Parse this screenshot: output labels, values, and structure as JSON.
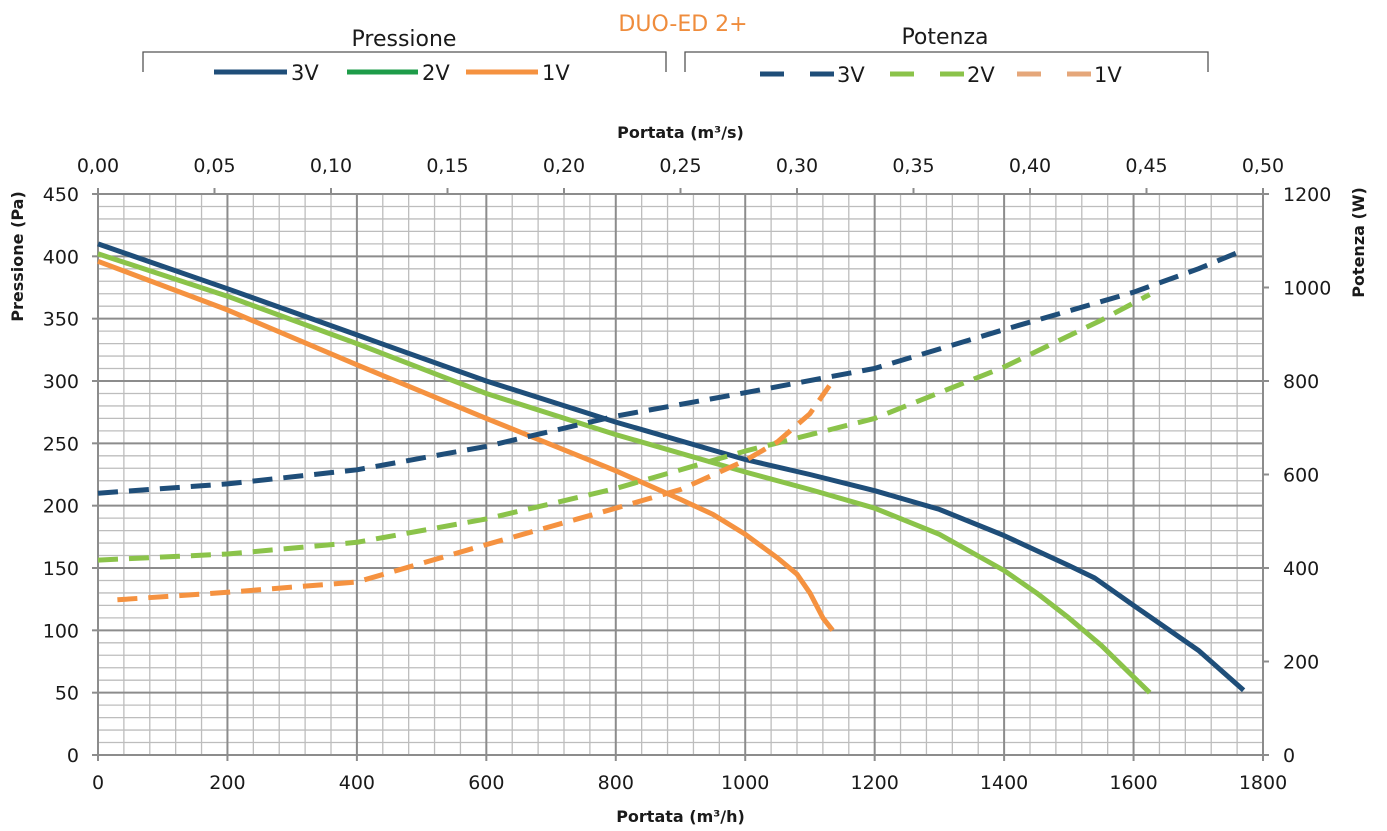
{
  "chart_data": {
    "type": "line",
    "title": "DUO-ED 2+",
    "x_bottom": {
      "label": "Portata (m³/h)",
      "range": [
        0,
        1800
      ],
      "ticks": [
        "0",
        "200",
        "400",
        "600",
        "800",
        "1000",
        "1200",
        "1400",
        "1600",
        "1800"
      ]
    },
    "x_top": {
      "label": "Portata (m³/s)",
      "range": [
        0,
        0.5
      ],
      "ticks": [
        "0,00",
        "0,05",
        "0,10",
        "0,15",
        "0,20",
        "0,25",
        "0,30",
        "0,35",
        "0,40",
        "0,45",
        "0,50"
      ]
    },
    "y_left": {
      "label": "Pressione (Pa)",
      "range": [
        0,
        450
      ],
      "ticks": [
        "0",
        "50",
        "100",
        "150",
        "200",
        "250",
        "300",
        "350",
        "400",
        "450"
      ]
    },
    "y_right": {
      "label": "Potenza (W)",
      "range": [
        0,
        1200
      ],
      "ticks": [
        "0",
        "200",
        "400",
        "600",
        "800",
        "1000",
        "1200"
      ]
    },
    "grid": true,
    "legend_groups": [
      {
        "title": "Pressione",
        "style": "solid",
        "items": [
          "3V",
          "2V",
          "1V"
        ]
      },
      {
        "title": "Potenza",
        "style": "dashed",
        "items": [
          "3V",
          "2V",
          "1V"
        ]
      }
    ],
    "legend_colors": {
      "pressione": [
        "#1f4e79",
        "#1e9c49",
        "#f59240"
      ],
      "potenza": [
        "#1f4e79",
        "#8bc34a",
        "#e5a77a"
      ]
    },
    "series": [
      {
        "name": "3V",
        "group": "Pressione",
        "axis": "left",
        "color": "#1f4e79",
        "style": "solid",
        "points": [
          [
            0,
            410
          ],
          [
            200,
            374
          ],
          [
            400,
            337
          ],
          [
            600,
            300
          ],
          [
            800,
            267
          ],
          [
            1000,
            237
          ],
          [
            1100,
            225
          ],
          [
            1200,
            212
          ],
          [
            1300,
            197
          ],
          [
            1400,
            176
          ],
          [
            1500,
            152
          ],
          [
            1540,
            142
          ],
          [
            1600,
            120
          ],
          [
            1700,
            84
          ],
          [
            1770,
            52
          ]
        ]
      },
      {
        "name": "2V",
        "group": "Pressione",
        "axis": "left",
        "color": "#8bc34a",
        "style": "solid",
        "points": [
          [
            0,
            402
          ],
          [
            200,
            368
          ],
          [
            400,
            330
          ],
          [
            600,
            290
          ],
          [
            800,
            257
          ],
          [
            1000,
            227
          ],
          [
            1100,
            213
          ],
          [
            1200,
            198
          ],
          [
            1300,
            177
          ],
          [
            1400,
            148
          ],
          [
            1450,
            130
          ],
          [
            1500,
            110
          ],
          [
            1550,
            88
          ],
          [
            1625,
            50
          ]
        ]
      },
      {
        "name": "1V",
        "group": "Pressione",
        "axis": "left",
        "color": "#f59240",
        "style": "solid",
        "points": [
          [
            0,
            396
          ],
          [
            200,
            357
          ],
          [
            400,
            313
          ],
          [
            600,
            270
          ],
          [
            800,
            228
          ],
          [
            900,
            205
          ],
          [
            950,
            193
          ],
          [
            1000,
            177
          ],
          [
            1050,
            158
          ],
          [
            1080,
            145
          ],
          [
            1100,
            130
          ],
          [
            1120,
            110
          ],
          [
            1135,
            100
          ]
        ]
      },
      {
        "name": "3V",
        "group": "Potenza",
        "axis": "right",
        "color": "#1f4e79",
        "style": "dashed",
        "points": [
          [
            0,
            560
          ],
          [
            200,
            580
          ],
          [
            400,
            610
          ],
          [
            600,
            660
          ],
          [
            800,
            725
          ],
          [
            1000,
            775
          ],
          [
            1200,
            827
          ],
          [
            1400,
            910
          ],
          [
            1600,
            990
          ],
          [
            1700,
            1040
          ],
          [
            1770,
            1080
          ]
        ]
      },
      {
        "name": "2V",
        "group": "Potenza",
        "axis": "right",
        "color": "#8bc34a",
        "style": "dashed",
        "points": [
          [
            0,
            417
          ],
          [
            200,
            430
          ],
          [
            400,
            455
          ],
          [
            600,
            505
          ],
          [
            800,
            570
          ],
          [
            1000,
            650
          ],
          [
            1200,
            720
          ],
          [
            1400,
            830
          ],
          [
            1550,
            930
          ],
          [
            1625,
            985
          ]
        ]
      },
      {
        "name": "1V",
        "group": "Potenza",
        "axis": "right",
        "color": "#f59240",
        "style": "dashed",
        "points": [
          [
            30,
            332
          ],
          [
            200,
            348
          ],
          [
            400,
            370
          ],
          [
            600,
            450
          ],
          [
            800,
            528
          ],
          [
            900,
            568
          ],
          [
            1000,
            630
          ],
          [
            1050,
            670
          ],
          [
            1100,
            730
          ],
          [
            1130,
            790
          ]
        ]
      }
    ]
  }
}
